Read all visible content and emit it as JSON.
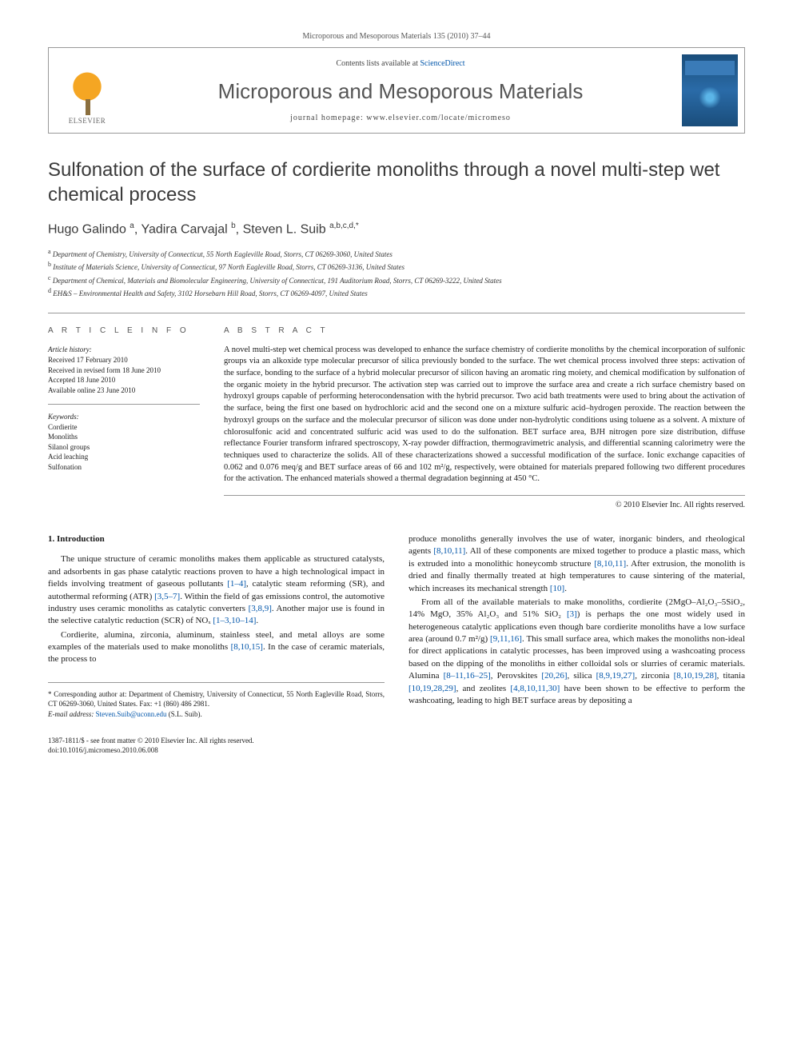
{
  "citation": "Microporous and Mesoporous Materials 135 (2010) 37–44",
  "header": {
    "contents_line_prefix": "Contents lists available at ",
    "contents_link": "ScienceDirect",
    "journal_title": "Microporous and Mesoporous Materials",
    "homepage_prefix": "journal homepage: ",
    "homepage_url": "www.elsevier.com/locate/micromeso",
    "publisher": "ELSEVIER"
  },
  "title": "Sulfonation of the surface of cordierite monoliths through a novel multi-step wet chemical process",
  "authors_html": "Hugo Galindo <sup>a</sup>, Yadira Carvajal <sup>b</sup>, Steven L. Suib <sup>a,b,c,d,*</sup>",
  "affiliations": [
    {
      "sup": "a",
      "text": "Department of Chemistry, University of Connecticut, 55 North Eagleville Road, Storrs, CT 06269-3060, United States"
    },
    {
      "sup": "b",
      "text": "Institute of Materials Science, University of Connecticut, 97 North Eagleville Road, Storrs, CT 06269-3136, United States"
    },
    {
      "sup": "c",
      "text": "Department of Chemical, Materials and Biomolecular Engineering, University of Connecticut, 191 Auditorium Road, Storrs, CT 06269-3222, United States"
    },
    {
      "sup": "d",
      "text": "EH&S – Environmental Health and Safety, 3102 Horsebarn Hill Road, Storrs, CT 06269-4097, United States"
    }
  ],
  "article_info": {
    "heading": "A R T I C L E   I N F O",
    "history_label": "Article history:",
    "received": "Received 17 February 2010",
    "revised": "Received in revised form 18 June 2010",
    "accepted": "Accepted 18 June 2010",
    "online": "Available online 23 June 2010",
    "keywords_label": "Keywords:",
    "keywords": [
      "Cordierite",
      "Monoliths",
      "Silanol groups",
      "Acid leaching",
      "Sulfonation"
    ]
  },
  "abstract": {
    "heading": "A B S T R A C T",
    "text": "A novel multi-step wet chemical process was developed to enhance the surface chemistry of cordierite monoliths by the chemical incorporation of sulfonic groups via an alkoxide type molecular precursor of silica previously bonded to the surface. The wet chemical process involved three steps: activation of the surface, bonding to the surface of a hybrid molecular precursor of silicon having an aromatic ring moiety, and chemical modification by sulfonation of the organic moiety in the hybrid precursor. The activation step was carried out to improve the surface area and create a rich surface chemistry based on hydroxyl groups capable of performing heterocondensation with the hybrid precursor. Two acid bath treatments were used to bring about the activation of the surface, being the first one based on hydrochloric acid and the second one on a mixture sulfuric acid–hydrogen peroxide. The reaction between the hydroxyl groups on the surface and the molecular precursor of silicon was done under non-hydrolytic conditions using toluene as a solvent. A mixture of chlorosulfonic acid and concentrated sulfuric acid was used to do the sulfonation. BET surface area, BJH nitrogen pore size distribution, diffuse reflectance Fourier transform infrared spectroscopy, X-ray powder diffraction, thermogravimetric analysis, and differential scanning calorimetry were the techniques used to characterize the solids. All of these characterizations showed a successful modification of the surface. Ionic exchange capacities of 0.062 and 0.076 meq/g and BET surface areas of 66 and 102 m²/g, respectively, were obtained for materials prepared following two different procedures for the activation. The enhanced materials showed a thermal degradation beginning at 450 °C.",
    "copyright": "© 2010 Elsevier Inc. All rights reserved."
  },
  "section1": {
    "heading": "1. Introduction",
    "col1_p1": "The unique structure of ceramic monoliths makes them applicable as structured catalysts, and adsorbents in gas phase catalytic reactions proven to have a high technological impact in fields involving treatment of gaseous pollutants [1–4], catalytic steam reforming (SR), and autothermal reforming (ATR) [3,5–7]. Within the field of gas emissions control, the automotive industry uses ceramic monoliths as catalytic converters [3,8,9]. Another major use is found in the selective catalytic reduction (SCR) of NOₓ [1–3,10–14].",
    "col1_p2": "Cordierite, alumina, zirconia, aluminum, stainless steel, and metal alloys are some examples of the materials used to make monoliths [8,10,15]. In the case of ceramic materials, the process to",
    "col2_p1": "produce monoliths generally involves the use of water, inorganic binders, and rheological agents [8,10,11]. All of these components are mixed together to produce a plastic mass, which is extruded into a monolithic honeycomb structure [8,10,11]. After extrusion, the monolith is dried and finally thermally treated at high temperatures to cause sintering of the material, which increases its mechanical strength [10].",
    "col2_p2": "From all of the available materials to make monoliths, cordierite (2MgO–Al₂O₃–5SiO₂, 14% MgO, 35% Al₂O₃ and 51% SiO₂ [3]) is perhaps the one most widely used in heterogeneous catalytic applications even though bare cordierite monoliths have a low surface area (around 0.7 m²/g) [9,11,16]. This small surface area, which makes the monoliths non-ideal for direct applications in catalytic processes, has been improved using a washcoating process based on the dipping of the monoliths in either colloidal sols or slurries of ceramic materials. Alumina [8–11,16–25], Perovskites [20,26], silica [8,9,19,27], zirconia [8,10,19,28], titania [10,19,28,29], and zeolites [4,8,10,11,30] have been shown to be effective to perform the washcoating, leading to high BET surface areas by depositing a"
  },
  "footer": {
    "corresponding": "* Corresponding author at: Department of Chemistry, University of Connecticut, 55 North Eagleville Road, Storrs, CT 06269-3060, United States. Fax: +1 (860) 486 2981.",
    "email_label": "E-mail address:",
    "email": "Steven.Suib@uconn.edu",
    "email_who": "(S.L. Suib).",
    "issn": "1387-1811/$ - see front matter © 2010 Elsevier Inc. All rights reserved.",
    "doi": "doi:10.1016/j.micromeso.2010.06.008"
  },
  "colors": {
    "link": "#0055aa",
    "text": "#1a1a1a",
    "muted": "#555555",
    "border": "#999999"
  }
}
